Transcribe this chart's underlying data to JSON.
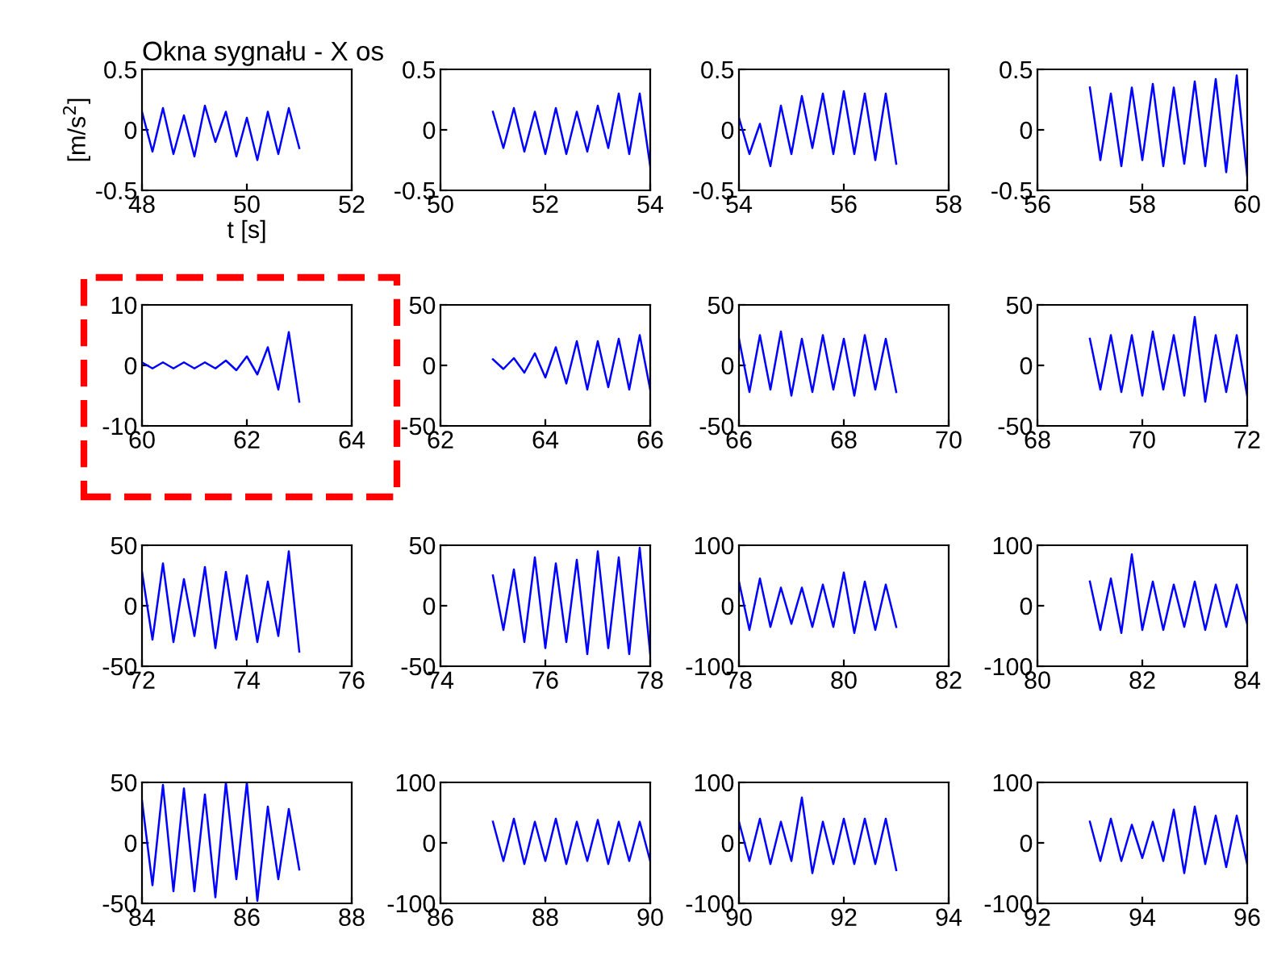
{
  "chart_data": [
    {
      "type": "line",
      "title": "Okna sygnału - X os",
      "xlabel": "t [s]",
      "ylabel": "[m/s$^{2}$]",
      "xlim": [
        48,
        52
      ],
      "xticks": [
        48,
        50,
        52
      ],
      "ylim": [
        -0.5,
        0.5
      ],
      "yticks": [
        -0.5,
        0,
        0.5
      ],
      "series": [
        {
          "color": "#0000ff",
          "x": [
            48,
            48.2,
            48.4,
            48.6,
            48.8,
            49,
            49.2,
            49.4,
            49.6,
            49.8,
            50,
            50.2,
            50.4,
            50.6,
            50.8,
            51
          ],
          "values": [
            0.15,
            -0.18,
            0.18,
            -0.2,
            0.12,
            -0.22,
            0.2,
            -0.1,
            0.15,
            -0.22,
            0.1,
            -0.25,
            0.15,
            -0.2,
            0.18,
            -0.15
          ]
        }
      ]
    },
    {
      "type": "line",
      "xlim": [
        50,
        54
      ],
      "xticks": [
        50,
        52,
        54
      ],
      "ylim": [
        -0.5,
        0.5
      ],
      "yticks": [
        -0.5,
        0,
        0.5
      ],
      "series": [
        {
          "color": "#0000ff",
          "x": [
            51,
            51.2,
            51.4,
            51.6,
            51.8,
            52,
            52.2,
            52.4,
            52.6,
            52.8,
            53,
            53.2,
            53.4,
            53.6,
            53.8,
            54
          ],
          "values": [
            0.15,
            -0.15,
            0.18,
            -0.18,
            0.15,
            -0.2,
            0.18,
            -0.2,
            0.15,
            -0.18,
            0.2,
            -0.15,
            0.3,
            -0.2,
            0.3,
            -0.3
          ]
        }
      ]
    },
    {
      "type": "line",
      "xlim": [
        54,
        58
      ],
      "xticks": [
        54,
        56,
        58
      ],
      "ylim": [
        -0.5,
        0.5
      ],
      "yticks": [
        -0.5,
        0,
        0.5
      ],
      "series": [
        {
          "color": "#0000ff",
          "x": [
            54,
            54.2,
            54.4,
            54.6,
            54.8,
            55,
            55.2,
            55.4,
            55.6,
            55.8,
            56,
            56.2,
            56.4,
            56.6,
            56.8,
            57
          ],
          "values": [
            0.1,
            -0.2,
            0.05,
            -0.3,
            0.2,
            -0.2,
            0.28,
            -0.15,
            0.3,
            -0.2,
            0.32,
            -0.2,
            0.3,
            -0.25,
            0.3,
            -0.28
          ]
        }
      ]
    },
    {
      "type": "line",
      "xlim": [
        56,
        60
      ],
      "xticks": [
        56,
        58,
        60
      ],
      "ylim": [
        -0.5,
        0.5
      ],
      "yticks": [
        -0.5,
        0,
        0.5
      ],
      "series": [
        {
          "color": "#0000ff",
          "x": [
            57,
            57.2,
            57.4,
            57.6,
            57.8,
            58,
            58.2,
            58.4,
            58.6,
            58.8,
            59,
            59.2,
            59.4,
            59.6,
            59.8,
            60
          ],
          "values": [
            0.35,
            -0.25,
            0.3,
            -0.3,
            0.35,
            -0.25,
            0.38,
            -0.3,
            0.35,
            -0.28,
            0.4,
            -0.3,
            0.42,
            -0.35,
            0.45,
            -0.38
          ]
        }
      ]
    },
    {
      "type": "line",
      "xlim": [
        60,
        64
      ],
      "xticks": [
        60,
        62,
        64
      ],
      "ylim": [
        -10,
        10
      ],
      "yticks": [
        -10,
        0,
        10
      ],
      "series": [
        {
          "color": "#0000ff",
          "x": [
            60,
            60.2,
            60.4,
            60.6,
            60.8,
            61,
            61.2,
            61.4,
            61.6,
            61.8,
            62,
            62.2,
            62.4,
            62.6,
            62.8,
            63
          ],
          "values": [
            0.5,
            -0.5,
            0.5,
            -0.5,
            0.5,
            -0.5,
            0.5,
            -0.5,
            0.8,
            -0.8,
            1.5,
            -1.5,
            3,
            -4,
            5.5,
            -6
          ]
        }
      ]
    },
    {
      "type": "line",
      "xlim": [
        62,
        66
      ],
      "xticks": [
        62,
        64,
        66
      ],
      "ylim": [
        -50,
        50
      ],
      "yticks": [
        -50,
        0,
        50
      ],
      "series": [
        {
          "color": "#0000ff",
          "x": [
            63,
            63.2,
            63.4,
            63.6,
            63.8,
            64,
            64.2,
            64.4,
            64.6,
            64.8,
            65,
            65.2,
            65.4,
            65.6,
            65.8,
            66
          ],
          "values": [
            5,
            -3,
            6,
            -6,
            10,
            -10,
            15,
            -15,
            20,
            -20,
            20,
            -18,
            22,
            -20,
            25,
            -20
          ]
        }
      ]
    },
    {
      "type": "line",
      "xlim": [
        66,
        70
      ],
      "xticks": [
        66,
        68,
        70
      ],
      "ylim": [
        -50,
        50
      ],
      "yticks": [
        -50,
        0,
        50
      ],
      "series": [
        {
          "color": "#0000ff",
          "x": [
            66,
            66.2,
            66.4,
            66.6,
            66.8,
            67,
            67.2,
            67.4,
            67.6,
            67.8,
            68,
            68.2,
            68.4,
            68.6,
            68.8,
            69
          ],
          "values": [
            22,
            -22,
            25,
            -20,
            28,
            -25,
            22,
            -22,
            25,
            -20,
            22,
            -25,
            25,
            -20,
            22,
            -22
          ]
        }
      ]
    },
    {
      "type": "line",
      "xlim": [
        68,
        72
      ],
      "xticks": [
        68,
        70,
        72
      ],
      "ylim": [
        -50,
        50
      ],
      "yticks": [
        -50,
        0,
        50
      ],
      "series": [
        {
          "color": "#0000ff",
          "x": [
            69,
            69.2,
            69.4,
            69.6,
            69.8,
            70,
            70.2,
            70.4,
            70.6,
            70.8,
            71,
            71.2,
            71.4,
            71.6,
            71.8,
            72
          ],
          "values": [
            22,
            -20,
            25,
            -22,
            25,
            -25,
            28,
            -20,
            25,
            -25,
            40,
            -30,
            25,
            -22,
            25,
            -25
          ]
        }
      ]
    },
    {
      "type": "line",
      "xlim": [
        72,
        76
      ],
      "xticks": [
        72,
        74,
        76
      ],
      "ylim": [
        -50,
        50
      ],
      "yticks": [
        -50,
        0,
        50
      ],
      "series": [
        {
          "color": "#0000ff",
          "x": [
            72,
            72.2,
            72.4,
            72.6,
            72.8,
            73,
            73.2,
            73.4,
            73.6,
            73.8,
            74,
            74.2,
            74.4,
            74.6,
            74.8,
            75
          ],
          "values": [
            28,
            -28,
            35,
            -30,
            22,
            -25,
            32,
            -35,
            28,
            -28,
            25,
            -30,
            20,
            -25,
            45,
            -38
          ]
        }
      ]
    },
    {
      "type": "line",
      "xlim": [
        74,
        78
      ],
      "xticks": [
        74,
        76,
        78
      ],
      "ylim": [
        -50,
        50
      ],
      "yticks": [
        -50,
        0,
        50
      ],
      "series": [
        {
          "color": "#0000ff",
          "x": [
            75,
            75.2,
            75.4,
            75.6,
            75.8,
            76,
            76.2,
            76.4,
            76.6,
            76.8,
            77,
            77.2,
            77.4,
            77.6,
            77.8,
            78
          ],
          "values": [
            25,
            -20,
            30,
            -30,
            40,
            -35,
            35,
            -30,
            38,
            -40,
            45,
            -35,
            40,
            -40,
            48,
            -40
          ]
        }
      ]
    },
    {
      "type": "line",
      "xlim": [
        78,
        82
      ],
      "xticks": [
        78,
        80,
        82
      ],
      "ylim": [
        -100,
        100
      ],
      "yticks": [
        -100,
        0,
        100
      ],
      "series": [
        {
          "color": "#0000ff",
          "x": [
            78,
            78.2,
            78.4,
            78.6,
            78.8,
            79,
            79.2,
            79.4,
            79.6,
            79.8,
            80,
            80.2,
            80.4,
            80.6,
            80.8,
            81
          ],
          "values": [
            40,
            -40,
            45,
            -35,
            30,
            -30,
            30,
            -35,
            35,
            -35,
            55,
            -45,
            40,
            -40,
            35,
            -35
          ]
        }
      ]
    },
    {
      "type": "line",
      "xlim": [
        80,
        84
      ],
      "xticks": [
        80,
        82,
        84
      ],
      "ylim": [
        -100,
        100
      ],
      "yticks": [
        -100,
        0,
        100
      ],
      "series": [
        {
          "color": "#0000ff",
          "x": [
            81,
            81.2,
            81.4,
            81.6,
            81.8,
            82,
            82.2,
            82.4,
            82.6,
            82.8,
            83,
            83.2,
            83.4,
            83.6,
            83.8,
            84
          ],
          "values": [
            40,
            -40,
            45,
            -45,
            85,
            -40,
            40,
            -40,
            35,
            -35,
            40,
            -40,
            35,
            -35,
            35,
            -30
          ]
        }
      ]
    },
    {
      "type": "line",
      "xlim": [
        84,
        88
      ],
      "xticks": [
        84,
        86,
        88
      ],
      "ylim": [
        -50,
        50
      ],
      "yticks": [
        -50,
        0,
        50
      ],
      "series": [
        {
          "color": "#0000ff",
          "x": [
            84,
            84.2,
            84.4,
            84.6,
            84.8,
            85,
            85.2,
            85.4,
            85.6,
            85.8,
            86,
            86.2,
            86.4,
            86.6,
            86.8,
            87
          ],
          "values": [
            35,
            -35,
            48,
            -40,
            45,
            -40,
            40,
            -45,
            50,
            -30,
            50,
            -48,
            30,
            -30,
            28,
            -22
          ]
        }
      ]
    },
    {
      "type": "line",
      "xlim": [
        86,
        90
      ],
      "xticks": [
        86,
        88,
        90
      ],
      "ylim": [
        -100,
        100
      ],
      "yticks": [
        -100,
        0,
        100
      ],
      "series": [
        {
          "color": "#0000ff",
          "x": [
            87,
            87.2,
            87.4,
            87.6,
            87.8,
            88,
            88.2,
            88.4,
            88.6,
            88.8,
            89,
            89.2,
            89.4,
            89.6,
            89.8,
            90
          ],
          "values": [
            35,
            -30,
            40,
            -35,
            35,
            -30,
            40,
            -35,
            35,
            -30,
            38,
            -35,
            35,
            -30,
            35,
            -30
          ]
        }
      ]
    },
    {
      "type": "line",
      "xlim": [
        90,
        94
      ],
      "xticks": [
        90,
        92,
        94
      ],
      "ylim": [
        -100,
        100
      ],
      "yticks": [
        -100,
        0,
        100
      ],
      "series": [
        {
          "color": "#0000ff",
          "x": [
            90,
            90.2,
            90.4,
            90.6,
            90.8,
            91,
            91.2,
            91.4,
            91.6,
            91.8,
            92,
            92.2,
            92.4,
            92.6,
            92.8,
            93
          ],
          "values": [
            35,
            -30,
            40,
            -35,
            35,
            -30,
            75,
            -50,
            35,
            -35,
            40,
            -35,
            40,
            -35,
            40,
            -45
          ]
        }
      ]
    },
    {
      "type": "line",
      "xlim": [
        92,
        96
      ],
      "xticks": [
        92,
        94,
        96
      ],
      "ylim": [
        -100,
        100
      ],
      "yticks": [
        -100,
        0,
        100
      ],
      "series": [
        {
          "color": "#0000ff",
          "x": [
            93,
            93.2,
            93.4,
            93.6,
            93.8,
            94,
            94.2,
            94.4,
            94.6,
            94.8,
            95,
            95.2,
            95.4,
            95.6,
            95.8,
            96
          ],
          "values": [
            35,
            -30,
            40,
            -30,
            30,
            -25,
            35,
            -30,
            55,
            -50,
            60,
            -35,
            45,
            -40,
            45,
            -35
          ]
        }
      ]
    }
  ]
}
